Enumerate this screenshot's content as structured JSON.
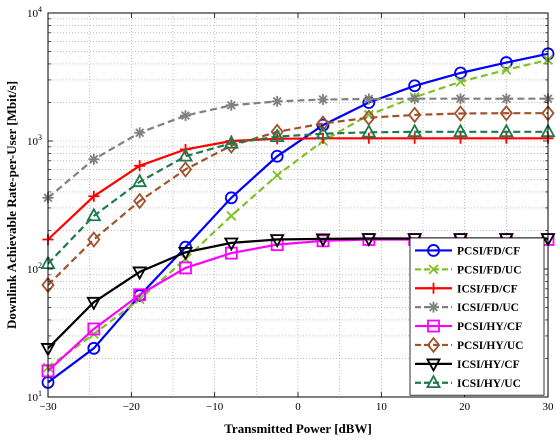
{
  "chart_data": {
    "type": "line",
    "xlabel": "Transmitted Power [dBW]",
    "ylabel": "Downlink Achievable Rate-per-User [Mbit/s]",
    "xlim": [
      -30,
      30
    ],
    "ylim": [
      10,
      10000
    ],
    "yscale": "log",
    "grid": true,
    "legend_position": "bottom-right",
    "x": [
      -30,
      -24.5,
      -19,
      -13.5,
      -8,
      -2.5,
      3,
      8.5,
      14,
      19.5,
      25,
      30
    ],
    "x_ticks": [
      "−30",
      "−20",
      "−10",
      "0",
      "10",
      "20",
      "30"
    ],
    "x_tick_values": [
      -30,
      -20,
      -10,
      0,
      10,
      20,
      30
    ],
    "y_ticks": [
      {
        "base": "10",
        "exp": "1",
        "value": 10
      },
      {
        "base": "10",
        "exp": "2",
        "value": 100
      },
      {
        "base": "10",
        "exp": "3",
        "value": 1000
      },
      {
        "base": "10",
        "exp": "4",
        "value": 10000
      }
    ],
    "series": [
      {
        "name": "PCSI/FD/CF",
        "color": "#0000ff",
        "dash": "solid",
        "marker": "circle",
        "values": [
          13,
          24,
          62,
          148,
          360,
          760,
          1330,
          2000,
          2700,
          3400,
          4100,
          4800
        ]
      },
      {
        "name": "PCSI/FD/UC",
        "color": "#7fbf2a",
        "dash": "dashed",
        "marker": "x",
        "values": [
          17,
          31,
          58,
          120,
          260,
          540,
          1000,
          1600,
          2200,
          2900,
          3600,
          4300
        ]
      },
      {
        "name": "ICSI/FD/CF",
        "color": "#ff0000",
        "dash": "solid",
        "marker": "plus",
        "values": [
          170,
          370,
          640,
          860,
          1000,
          1040,
          1050,
          1050,
          1050,
          1050,
          1050,
          1050
        ]
      },
      {
        "name": "ICSI/FD/UC",
        "color": "#808080",
        "dash": "dashed",
        "marker": "star",
        "values": [
          360,
          720,
          1160,
          1580,
          1900,
          2040,
          2110,
          2130,
          2140,
          2140,
          2140,
          2140
        ]
      },
      {
        "name": "PCSI/HY/CF",
        "color": "#ff00ff",
        "dash": "solid",
        "marker": "square",
        "values": [
          16,
          34,
          63,
          102,
          133,
          155,
          166,
          170,
          170,
          170,
          170,
          170
        ]
      },
      {
        "name": "PCSI/HY/UC",
        "color": "#a0522d",
        "dash": "dashed",
        "marker": "diamond",
        "values": [
          75,
          170,
          340,
          600,
          920,
          1180,
          1370,
          1520,
          1600,
          1640,
          1650,
          1650
        ]
      },
      {
        "name": "ICSI/HY/CF",
        "color": "#000000",
        "dash": "solid",
        "marker": "triangle-down",
        "values": [
          24,
          55,
          95,
          135,
          160,
          170,
          172,
          173,
          173,
          173,
          173,
          173
        ]
      },
      {
        "name": "ICSI/HY/UC",
        "color": "#1e7a4a",
        "dash": "dashed",
        "marker": "triangle-up",
        "values": [
          110,
          260,
          480,
          760,
          960,
          1080,
          1140,
          1170,
          1180,
          1180,
          1180,
          1180
        ]
      }
    ]
  }
}
